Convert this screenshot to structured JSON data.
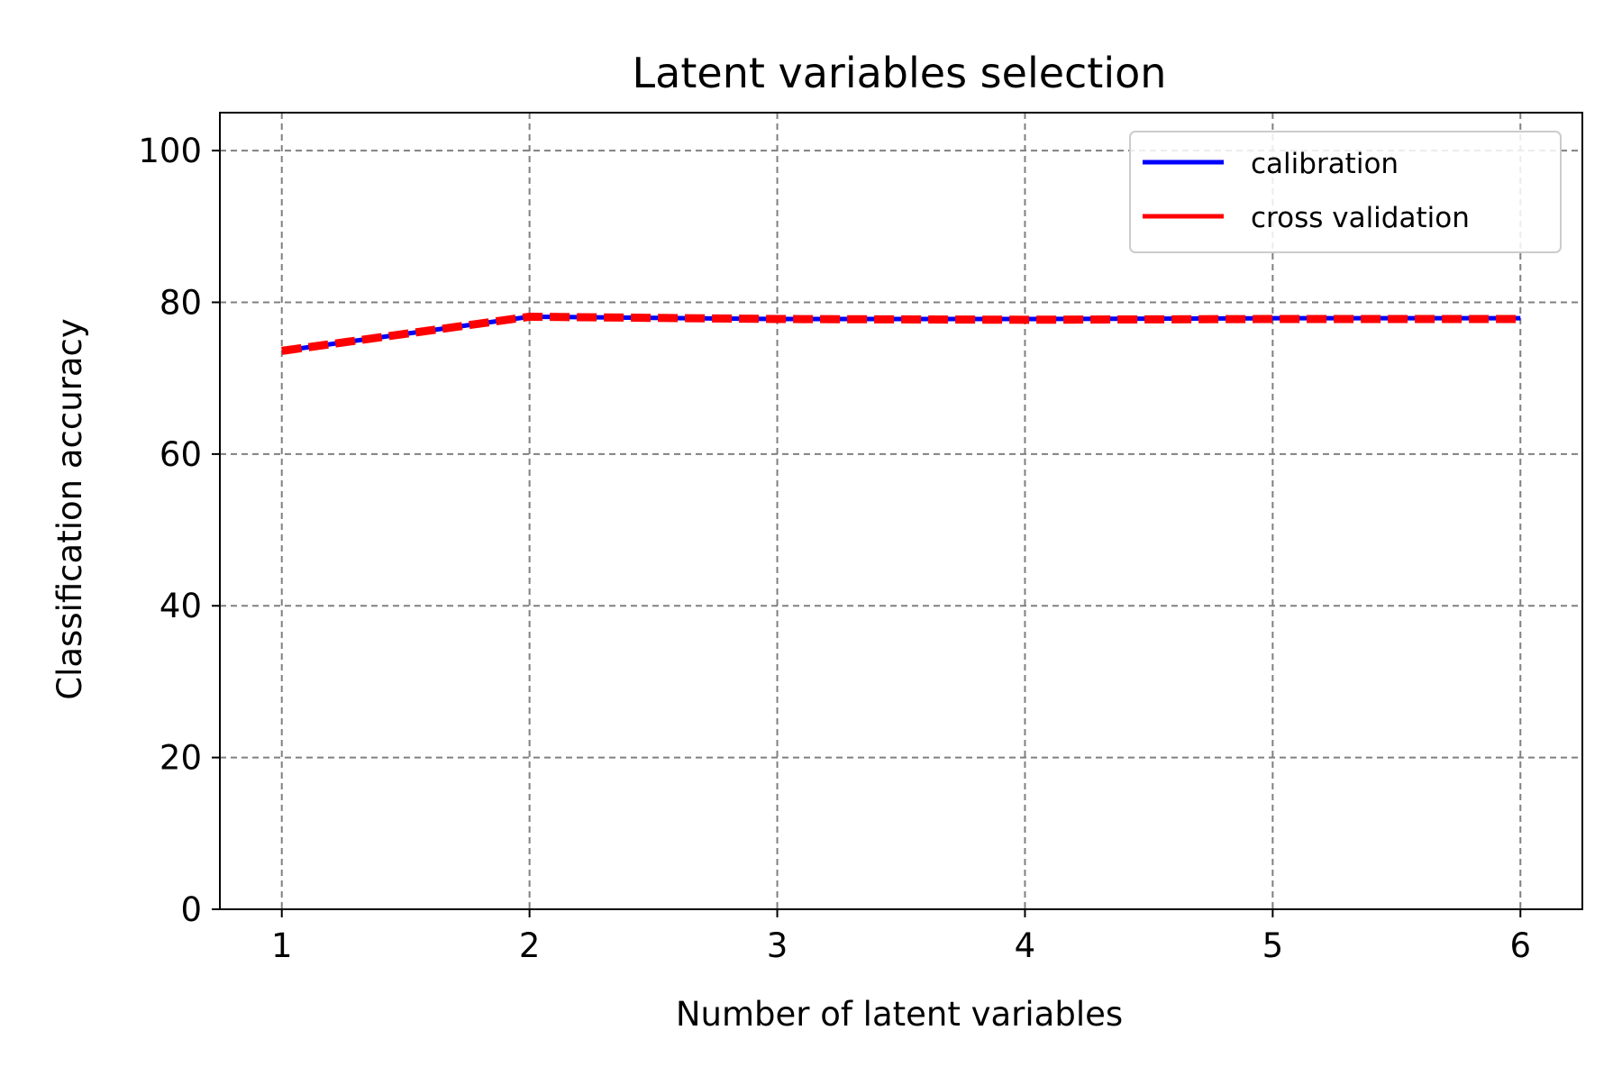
{
  "chart_data": {
    "type": "line",
    "title": "Latent variables selection",
    "xlabel": "Number of latent variables",
    "ylabel": "Classification accuracy",
    "x": [
      1,
      2,
      3,
      4,
      5,
      6
    ],
    "xlim": [
      0.75,
      6.25
    ],
    "ylim": [
      0,
      105
    ],
    "xticks": [
      1,
      2,
      3,
      4,
      5,
      6
    ],
    "yticks": [
      0,
      20,
      40,
      60,
      80,
      100
    ],
    "grid": true,
    "legend_position": "top-right",
    "series": [
      {
        "name": "calibration",
        "color": "#0000ff",
        "style": "solid",
        "values": [
          73.6,
          78.1,
          77.8,
          77.8,
          77.9,
          77.9
        ]
      },
      {
        "name": "cross validation",
        "color": "#ff0000",
        "style": "dashed",
        "values": [
          73.6,
          78.1,
          77.8,
          77.7,
          77.8,
          77.8
        ]
      }
    ]
  }
}
